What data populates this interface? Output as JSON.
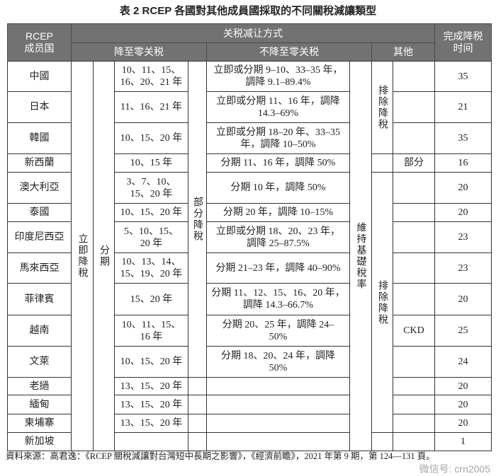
{
  "title": "表 2 RCEP 各國對其他成員國採取的不同關稅減讓類型",
  "header": {
    "member": "RCEP\n成员国",
    "method": "关税减让方式",
    "to_zero": "降至零关税",
    "not_zero": "不降至零关税",
    "other": "其他",
    "finish": "完成降税\n时间"
  },
  "spans": {
    "immediate": "立即降稅",
    "staged": "分期",
    "partial": "部分降稅",
    "exclude_1": "排除降稅",
    "maintain": "維持基礎稅率",
    "exclude_2": "排除降稅"
  },
  "rows": [
    {
      "country": "中國",
      "years": "10、11、15、\n16、20、21 年",
      "partial": "立即或分期 9–10、33–35 年，\n調降 9.1–89.4%",
      "other": "",
      "finish": "35"
    },
    {
      "country": "日本",
      "years": "11、16、21 年",
      "partial": "立即或分期 11、16 年，調降\n14.3–69%",
      "other": "",
      "finish": "21"
    },
    {
      "country": "韓國",
      "years": "10、15、20 年",
      "partial": "立即或分期 18–20 年、33–35\n年，調降 10–50%",
      "other": "",
      "finish": "35"
    },
    {
      "country": "新西蘭",
      "years": "10、15 年",
      "partial": "分期 11、16 年，調降 50%",
      "other": "部分",
      "finish": "16"
    },
    {
      "country": "澳大利亞",
      "years": "3、7、10、\n15、20 年",
      "partial": "分期 10 年，調降 50%",
      "other": "",
      "finish": "20"
    },
    {
      "country": "泰國",
      "years": "10、15、20 年",
      "partial": "分期 20 年，調降 10–15%",
      "other": "",
      "finish": "20"
    },
    {
      "country": "印度尼西亞",
      "years": "5、10、15、\n20 年",
      "partial": "立即或分期 18、20、23 年，\n調降 25–87.5%",
      "other": "",
      "finish": "23"
    },
    {
      "country": "馬來西亞",
      "years": "10、13、14、\n15、19、20 年",
      "partial": "分期 21–23 年，調降 40–90%",
      "other": "",
      "finish": "23"
    },
    {
      "country": "菲律賓",
      "years": "15、20 年",
      "partial": "分期 11、12、15、16、20 年，\n調降 14.3–66.7%",
      "other": "",
      "finish": "20"
    },
    {
      "country": "越南",
      "years": "10、11、15、\n16 年",
      "partial": "分期 20、25 年，調降 24–\n50%",
      "other": "CKD",
      "finish": "25"
    },
    {
      "country": "文萊",
      "years": "10、15、20 年",
      "partial": "分期 18、20、24 年，調降\n50%",
      "other": "",
      "finish": "24"
    },
    {
      "country": "老撾",
      "years": "13、15、20 年",
      "partial": "",
      "other": "",
      "finish": "20"
    },
    {
      "country": "緬甸",
      "years": "13、15、20 年",
      "partial": "",
      "other": "",
      "finish": "20"
    },
    {
      "country": "柬埔寨",
      "years": "13、15、20 年",
      "partial": "",
      "other": "",
      "finish": "20"
    },
    {
      "country": "新加坡",
      "years": "",
      "partial": "",
      "other": "",
      "finish": "1"
    }
  ],
  "source": "資料來源：高君逸：《RCEP 關稅減讓對台灣短中長期之影響》，《經濟前瞻》，2021 年第 9 期，第 124—131 頁。",
  "watermark": "微信号: crn2005"
}
